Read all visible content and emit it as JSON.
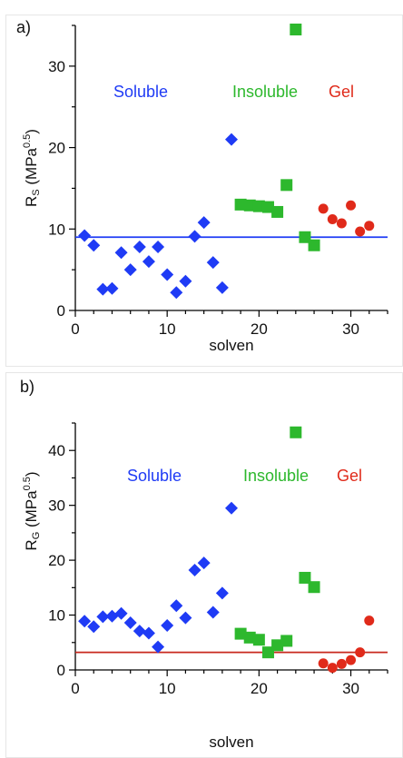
{
  "colors": {
    "soluble": "#1f3bf5",
    "insoluble": "#2db82d",
    "gel": "#e02a1a",
    "line_a": "#1f3bf5",
    "line_b": "#c8281e",
    "axis": "#000000"
  },
  "chart_data": [
    {
      "type": "scatter",
      "panel_label": "a)",
      "xlabel": "solven",
      "ylabel_main": "R",
      "ylabel_sub": "S",
      "ylabel_unit": " (MPa",
      "ylabel_sup": "0.5",
      "ylabel_close": ")",
      "xlim": [
        0,
        34
      ],
      "ylim": [
        0,
        35
      ],
      "xticks": [
        0,
        10,
        20,
        30
      ],
      "yticks": [
        0,
        10,
        20,
        30
      ],
      "grid": false,
      "reference_line": 9,
      "category_labels": [
        {
          "name": "soluble",
          "text": "Soluble"
        },
        {
          "name": "insoluble",
          "text": "Insoluble"
        },
        {
          "name": "gel",
          "text": "Gel"
        }
      ],
      "series": [
        {
          "group": "soluble",
          "marker": "diamond",
          "x": [
            1,
            2,
            3,
            4,
            5,
            6,
            7,
            8,
            9,
            10,
            11,
            12,
            13,
            14,
            15,
            16,
            17
          ],
          "y": [
            9.2,
            8,
            2.6,
            2.7,
            7.1,
            5,
            7.8,
            6,
            7.8,
            4.4,
            2.2,
            3.6,
            9.1,
            10.8,
            5.9,
            2.8,
            21
          ]
        },
        {
          "group": "insoluble",
          "marker": "square",
          "x": [
            18,
            19,
            20,
            21,
            22,
            23,
            24,
            25,
            26
          ],
          "y": [
            13,
            12.9,
            12.8,
            12.7,
            12.1,
            15.4,
            34.5,
            9,
            8
          ]
        },
        {
          "group": "gel",
          "marker": "circle",
          "x": [
            27,
            28,
            29,
            30,
            31,
            32
          ],
          "y": [
            12.5,
            11.2,
            10.7,
            12.9,
            9.7,
            10.4
          ]
        }
      ]
    },
    {
      "type": "scatter",
      "panel_label": "b)",
      "xlabel": "solven",
      "ylabel_main": "R",
      "ylabel_sub": "G",
      "ylabel_unit": " (MPa",
      "ylabel_sup": "0.5",
      "ylabel_close": ")",
      "xlim": [
        0,
        34
      ],
      "ylim": [
        0,
        45
      ],
      "xticks": [
        0,
        10,
        20,
        30
      ],
      "yticks": [
        0,
        10,
        20,
        30,
        40
      ],
      "grid": false,
      "reference_line": 3.2,
      "category_labels": [
        {
          "name": "soluble",
          "text": "Soluble"
        },
        {
          "name": "insoluble",
          "text": "Insoluble"
        },
        {
          "name": "gel",
          "text": "Gel"
        }
      ],
      "series": [
        {
          "group": "soluble",
          "marker": "diamond",
          "x": [
            1,
            2,
            3,
            4,
            5,
            6,
            7,
            8,
            9,
            10,
            11,
            12,
            13,
            14,
            15,
            16,
            17
          ],
          "y": [
            8.9,
            7.9,
            9.7,
            9.8,
            10.3,
            8.6,
            7.1,
            6.7,
            4.2,
            8.1,
            11.7,
            9.5,
            18.2,
            19.5,
            10.5,
            14,
            29.5
          ]
        },
        {
          "group": "insoluble",
          "marker": "square",
          "x": [
            18,
            19,
            20,
            21,
            22,
            23,
            24,
            25,
            26
          ],
          "y": [
            6.6,
            5.9,
            5.5,
            3.2,
            4.5,
            5.3,
            43.3,
            16.8,
            15.1
          ]
        },
        {
          "group": "gel",
          "marker": "circle",
          "x": [
            27,
            28,
            29,
            30,
            31,
            32
          ],
          "y": [
            1.2,
            0.4,
            1.1,
            1.8,
            3.2,
            9
          ]
        }
      ]
    }
  ]
}
